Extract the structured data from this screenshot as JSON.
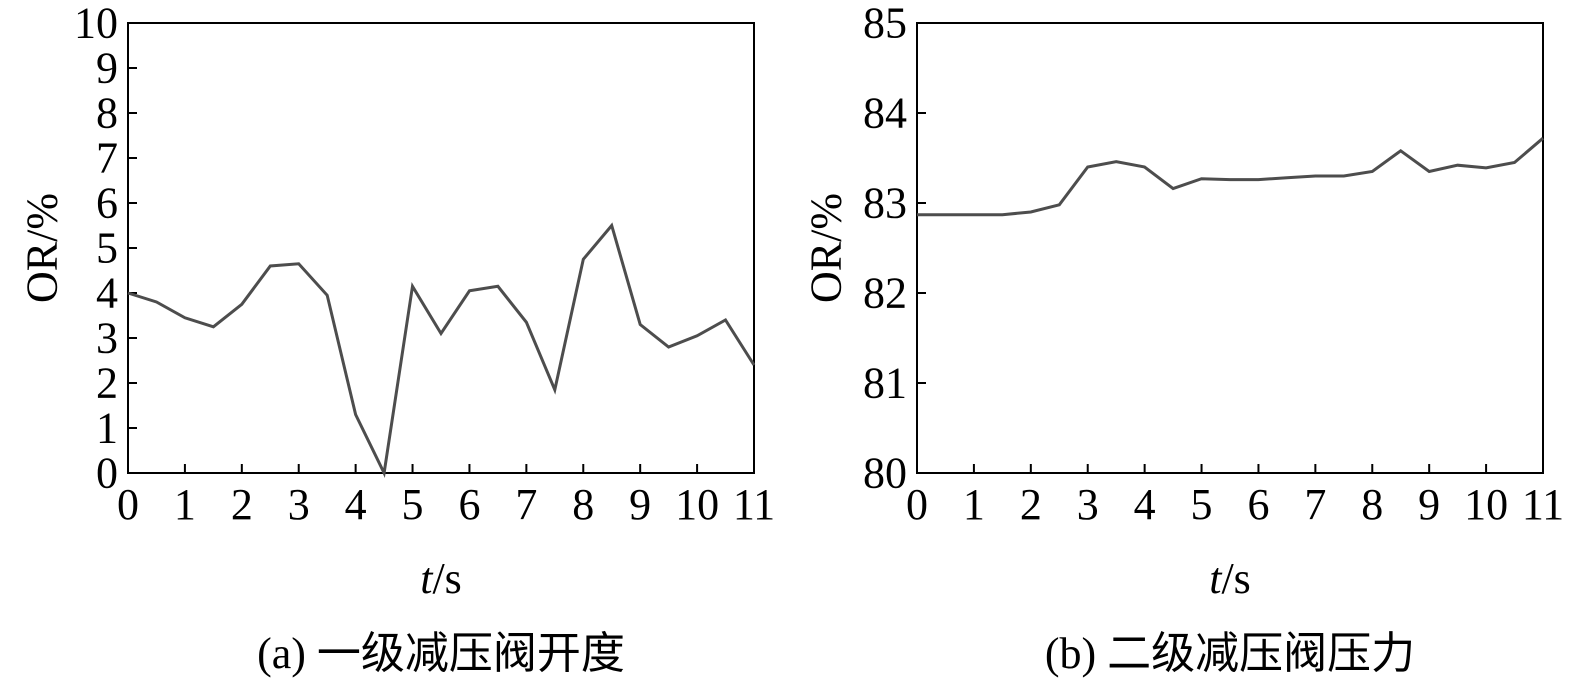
{
  "chart_data": [
    {
      "type": "line",
      "caption": "(a) 一级减压阀开度",
      "xlabel_italic": "t",
      "xlabel_unit": "/s",
      "ylabel": "OR/%",
      "xlim": [
        0,
        11
      ],
      "ylim": [
        0,
        10
      ],
      "xticks": [
        0,
        1,
        2,
        3,
        4,
        5,
        6,
        7,
        8,
        9,
        10,
        11
      ],
      "yticks": [
        0,
        1,
        2,
        3,
        4,
        5,
        6,
        7,
        8,
        9,
        10
      ],
      "grid": false,
      "line_color": "#4d4d4d",
      "series": [
        {
          "x": [
            0,
            0.5,
            1,
            1.5,
            2,
            2.5,
            3,
            3.5,
            4,
            4.5,
            5,
            5.5,
            6,
            6.5,
            7,
            7.5,
            8,
            8.5,
            9,
            9.5,
            10,
            10.5,
            11
          ],
          "y": [
            4.0,
            3.8,
            3.45,
            3.25,
            3.75,
            4.6,
            4.65,
            3.95,
            1.3,
            0.0,
            4.15,
            3.1,
            4.05,
            4.15,
            3.35,
            1.85,
            4.75,
            5.5,
            3.3,
            2.8,
            3.05,
            3.4,
            2.4
          ]
        }
      ]
    },
    {
      "type": "line",
      "caption": "(b) 二级减压阀压力",
      "xlabel_italic": "t",
      "xlabel_unit": "/s",
      "ylabel": "OR/%",
      "xlim": [
        0,
        11
      ],
      "ylim": [
        80,
        85
      ],
      "xticks": [
        0,
        1,
        2,
        3,
        4,
        5,
        6,
        7,
        8,
        9,
        10,
        11
      ],
      "yticks": [
        80,
        81,
        82,
        83,
        84,
        85
      ],
      "grid": false,
      "line_color": "#4d4d4d",
      "series": [
        {
          "x": [
            0,
            0.5,
            1,
            1.5,
            2,
            2.5,
            3,
            3.5,
            4,
            4.5,
            5,
            5.5,
            6,
            6.5,
            7,
            7.5,
            8,
            8.5,
            9,
            9.5,
            10,
            10.5,
            11
          ],
          "y": [
            82.87,
            82.87,
            82.87,
            82.87,
            82.9,
            82.98,
            83.4,
            83.46,
            83.4,
            83.16,
            83.27,
            83.26,
            83.26,
            83.28,
            83.3,
            83.3,
            83.35,
            83.58,
            83.35,
            83.42,
            83.39,
            83.45,
            83.72
          ]
        }
      ]
    }
  ]
}
